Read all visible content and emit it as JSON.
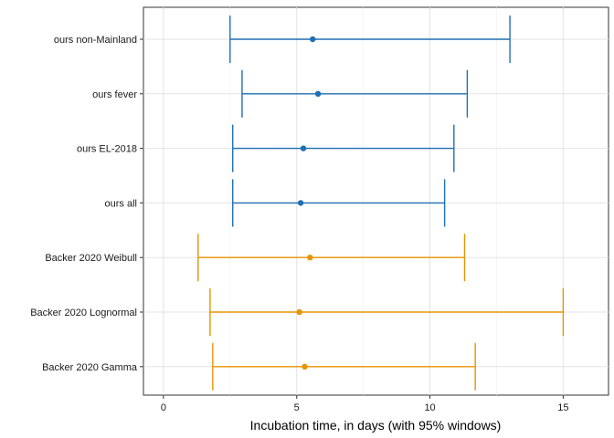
{
  "chart_data": {
    "type": "forest",
    "xlabel": "Incubation time, in days (with 95% windows)",
    "ylabel": "",
    "xlim": [
      -0.75,
      16.7
    ],
    "xticks": [
      0,
      5,
      10,
      15
    ],
    "grid": true,
    "legend": "none",
    "rows": [
      {
        "label": "ours non-Mainland",
        "estimate": 5.6,
        "lower": 2.5,
        "upper": 13.0,
        "color": "#1f6fb4"
      },
      {
        "label": "ours fever",
        "estimate": 5.8,
        "lower": 2.95,
        "upper": 11.4,
        "color": "#1f6fb4"
      },
      {
        "label": "ours EL-2018",
        "estimate": 5.25,
        "lower": 2.6,
        "upper": 10.9,
        "color": "#1f6fb4"
      },
      {
        "label": "ours all",
        "estimate": 5.15,
        "lower": 2.6,
        "upper": 10.55,
        "color": "#1f6fb4"
      },
      {
        "label": "Backer 2020 Weibull",
        "estimate": 5.5,
        "lower": 1.3,
        "upper": 11.3,
        "color": "#e69500"
      },
      {
        "label": "Backer 2020 Lognormal",
        "estimate": 5.1,
        "lower": 1.75,
        "upper": 15.0,
        "color": "#e69500"
      },
      {
        "label": "Backer 2020 Gamma",
        "estimate": 5.3,
        "lower": 1.85,
        "upper": 11.7,
        "color": "#e69500"
      }
    ]
  }
}
